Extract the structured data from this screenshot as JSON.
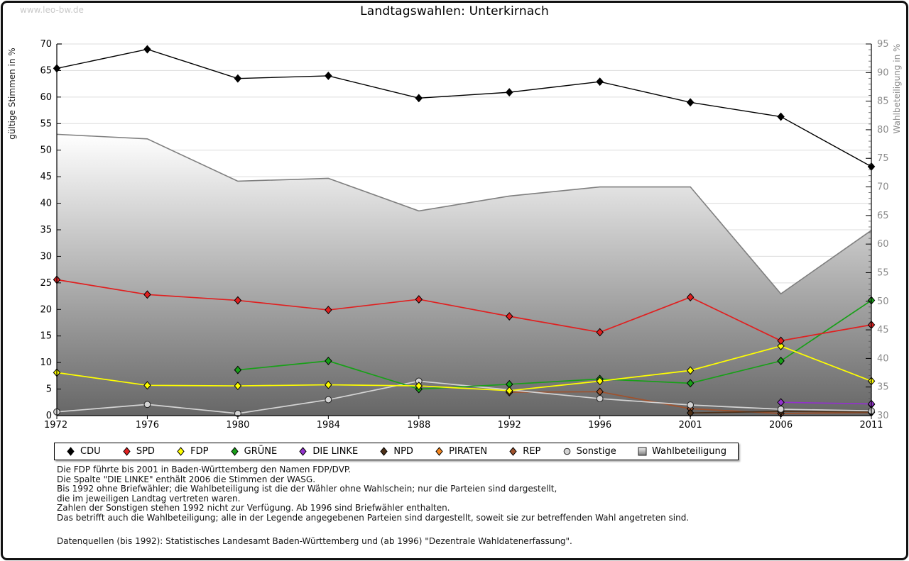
{
  "window": {
    "watermark": "www.leo-bw.de",
    "title": "Landtagswahlen: Unterkirnach"
  },
  "chart_data": {
    "type": "line",
    "title": "Landtagswahlen: Unterkirnach",
    "x_categories": [
      "1972",
      "1976",
      "1980",
      "1984",
      "1988",
      "1992",
      "1996",
      "2001",
      "2006",
      "2011"
    ],
    "y_left": {
      "label": "gültige Stimmen in %",
      "min": 0,
      "max": 70,
      "tick_step": 5
    },
    "y_right": {
      "label": "Wahlbeteiligung in %",
      "min": 30,
      "max": 95,
      "tick_step": 5,
      "minor_tick_step": 1
    },
    "grid": true,
    "legend_position": "bottom",
    "series": [
      {
        "name": "CDU",
        "color": "#000000",
        "axis": "left",
        "marker": "diamond",
        "kind": "line",
        "values": [
          65.4,
          69.0,
          63.5,
          64.0,
          59.8,
          60.9,
          62.9,
          59.0,
          56.3,
          46.9
        ]
      },
      {
        "name": "SPD",
        "color": "#e02020",
        "axis": "left",
        "marker": "diamond",
        "kind": "line",
        "values": [
          25.6,
          22.8,
          21.7,
          19.9,
          21.9,
          18.7,
          15.7,
          22.3,
          14.1,
          17.1
        ]
      },
      {
        "name": "FDP",
        "color": "#ffff00",
        "axis": "left",
        "marker": "diamond",
        "kind": "line",
        "values": [
          8.1,
          5.7,
          5.6,
          5.8,
          5.6,
          4.7,
          6.5,
          8.5,
          13.1,
          6.5
        ]
      },
      {
        "name": "GRÜNE",
        "color": "#18a018",
        "axis": "left",
        "marker": "diamond",
        "kind": "line",
        "values": [
          null,
          null,
          8.6,
          10.3,
          5.0,
          5.9,
          6.9,
          6.1,
          10.3,
          21.7
        ]
      },
      {
        "name": "DIE LINKE",
        "color": "#9232cc",
        "axis": "left",
        "marker": "diamond",
        "kind": "line",
        "values": [
          null,
          null,
          null,
          null,
          null,
          null,
          null,
          null,
          2.5,
          2.2
        ]
      },
      {
        "name": "NPD",
        "color": "#4e3119",
        "axis": "left",
        "marker": "diamond",
        "kind": "line",
        "values": [
          null,
          null,
          null,
          null,
          null,
          null,
          null,
          0.5,
          0.8,
          0.7
        ]
      },
      {
        "name": "PIRATEN",
        "color": "#f5861f",
        "axis": "left",
        "marker": "diamond",
        "kind": "line",
        "values": [
          null,
          null,
          null,
          null,
          null,
          null,
          null,
          null,
          null,
          2.1
        ]
      },
      {
        "name": "REP",
        "color": "#a0522d",
        "axis": "left",
        "marker": "diamond",
        "kind": "line",
        "values": [
          null,
          null,
          null,
          null,
          null,
          4.4,
          4.5,
          1.3,
          0.4,
          0.6
        ]
      },
      {
        "name": "Sonstige",
        "color": "#d4d4d4",
        "axis": "left",
        "marker": "circle",
        "kind": "line",
        "values": [
          0.7,
          2.1,
          0.4,
          3.0,
          6.5,
          null,
          3.2,
          2.0,
          1.2,
          0.9
        ]
      },
      {
        "name": "Wahlbeteiligung",
        "color": "#7f7f7f",
        "axis": "right",
        "marker": "square",
        "kind": "area",
        "values": [
          79.2,
          78.4,
          71.0,
          71.5,
          65.8,
          68.4,
          70.0,
          70.0,
          51.3,
          62.4
        ]
      }
    ]
  },
  "footnotes": {
    "lines": [
      "Die FDP führte bis 2001 in Baden-Württemberg den Namen FDP/DVP.",
      "Die Spalte \"DIE LINKE\" enthält 2006 die Stimmen der WASG.",
      "Bis 1992 ohne Briefwähler; die Wahlbeteiligung ist die der Wähler ohne Wahlschein; nur die Parteien sind dargestellt,",
      "die im jeweiligen Landtag vertreten waren.",
      "Zahlen der Sonstigen stehen 1992 nicht zur Verfügung. Ab 1996 sind Briefwähler enthalten.",
      "Das betrifft auch die Wahlbeteiligung; alle in der Legende angegebenen Parteien sind dargestellt, soweit sie zur betreffenden Wahl angetreten sind."
    ],
    "source": "Datenquellen (bis 1992): Statistisches Landesamt Baden-Württemberg und (ab 1996) \"Dezentrale Wahldatenerfassung\"."
  }
}
